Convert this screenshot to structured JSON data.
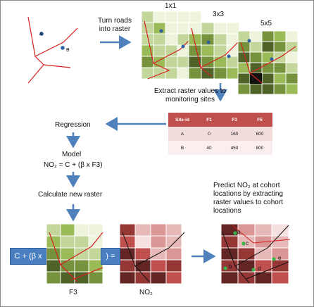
{
  "labels": {
    "turn_roads": "Turn roads",
    "into_raster": "into raster",
    "res_1x1": "1x1",
    "res_3x3": "3x3",
    "res_5x5": "5x5",
    "extract_line1": "Extract raster values to",
    "extract_line2": "monitoring sites",
    "regression": "Regression",
    "model": "Model",
    "formula": "NO₂ = C + (β x F3)",
    "calc_raster": "Calculate new raster",
    "predict_line1": "Predict NO₂ at cohort",
    "predict_line2": "locations by extracting",
    "predict_line3": "raster values to cohort",
    "predict_line4": "locations",
    "eq_left": "C + (β x",
    "eq_right": ") =",
    "f3": "F3",
    "no2": "NO₂"
  },
  "points": {
    "a": "A",
    "b": "B"
  },
  "cohort_points": [
    "a",
    "c",
    "b",
    "d",
    "e"
  ],
  "table": {
    "headers": [
      "Site-id",
      "F1",
      "F3",
      "F5"
    ],
    "rows": [
      [
        "A",
        "0",
        "160",
        "600"
      ],
      [
        "B",
        "40",
        "450",
        "800"
      ]
    ]
  },
  "colors": {
    "arrow": "#4f81bd",
    "road": "#d62020",
    "point": "#2e5fa3",
    "cohort_point": "#3cb44b",
    "table_header": "#c0504d"
  }
}
